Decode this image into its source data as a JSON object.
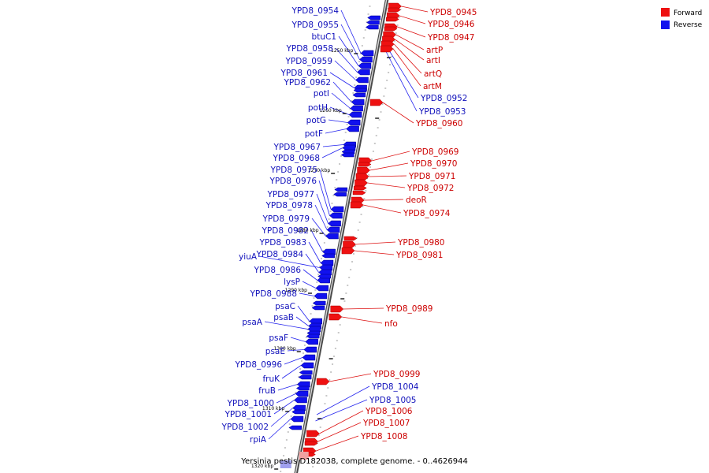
{
  "caption": "Yersinia pestis D182038, complete genome. - 0..4626944",
  "legend": [
    {
      "label": "Forward",
      "color": "#ee1111"
    },
    {
      "label": "Reverse",
      "color": "#1111ee"
    }
  ],
  "ticks": [
    "1250 kbp",
    "1260 kbp",
    "1270 kbp",
    "1280 kbp",
    "1290 kbp",
    "1300 kbp",
    "1310 kbp",
    "1320 kbp"
  ],
  "reverse_genes": [
    "YPD8_0954",
    "YPD8_0955",
    "btuC1",
    "YPD8_0958",
    "YPD8_0959",
    "YPD8_0961",
    "YPD8_0962",
    "potI",
    "potH",
    "potG",
    "potF",
    "YPD8_0967",
    "YPD8_0968",
    "YPD8_0975",
    "YPD8_0976",
    "YPD8_0977",
    "YPD8_0978",
    "YPD8_0979",
    "YPD8_0982",
    "YPD8_0983",
    "yiuA",
    "YPD8_0984",
    "YPD8_0986",
    "lysP",
    "YPD8_0988",
    "psaC",
    "psaB",
    "psaA",
    "psaF",
    "psaE",
    "YPD8_0996",
    "fruK",
    "fruB",
    "YPD8_1000",
    "YPD8_1001",
    "YPD8_1002",
    "rpiA"
  ],
  "forward_genes": [
    "YPD8_0945",
    "YPD8_0946",
    "YPD8_0947",
    "artP",
    "artI",
    "artQ",
    "artM",
    "YPD8_0960",
    "YPD8_0969",
    "YPD8_0970",
    "YPD8_0971",
    "YPD8_0972",
    "deoR",
    "YPD8_0974",
    "YPD8_0980",
    "YPD8_0981",
    "YPD8_0989",
    "nfo",
    "YPD8_0999",
    "YPD8_1006",
    "YPD8_1007",
    "YPD8_1008"
  ],
  "reverse_right_genes": [
    "YPD8_0952",
    "YPD8_0953",
    "YPD8_1004",
    "YPD8_1005"
  ]
}
